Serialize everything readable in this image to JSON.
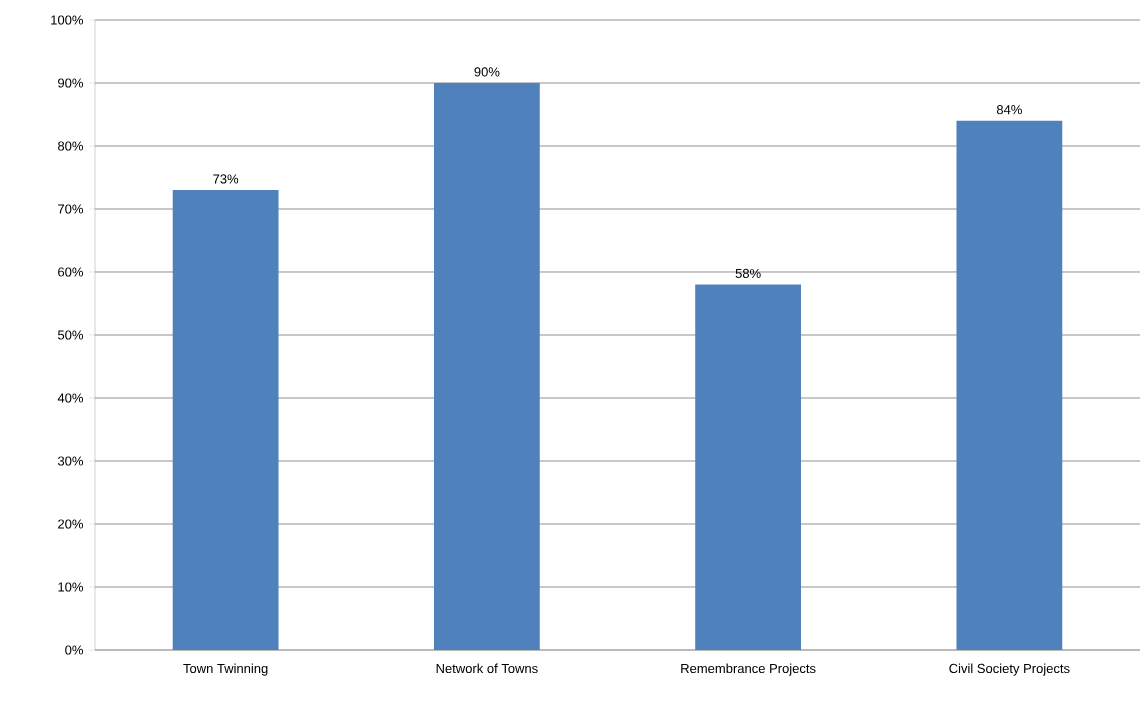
{
  "chart_data": {
    "type": "bar",
    "categories": [
      "Town Twinning",
      "Network of Towns",
      "Remembrance Projects",
      "Civil Society Projects"
    ],
    "values": [
      73,
      90,
      58,
      84
    ],
    "value_labels": [
      "73%",
      "90%",
      "58%",
      "84%"
    ],
    "color": "#4f81bd",
    "ylim": [
      0,
      100
    ],
    "yticks": [
      {
        "value": 0,
        "label": "0%"
      },
      {
        "value": 10,
        "label": "10%"
      },
      {
        "value": 20,
        "label": "20%"
      },
      {
        "value": 30,
        "label": "30%"
      },
      {
        "value": 40,
        "label": "40%"
      },
      {
        "value": 50,
        "label": "50%"
      },
      {
        "value": 60,
        "label": "60%"
      },
      {
        "value": 70,
        "label": "70%"
      },
      {
        "value": 80,
        "label": "80%"
      },
      {
        "value": 90,
        "label": "90%"
      },
      {
        "value": 100,
        "label": "100%"
      }
    ],
    "grid": "y"
  }
}
